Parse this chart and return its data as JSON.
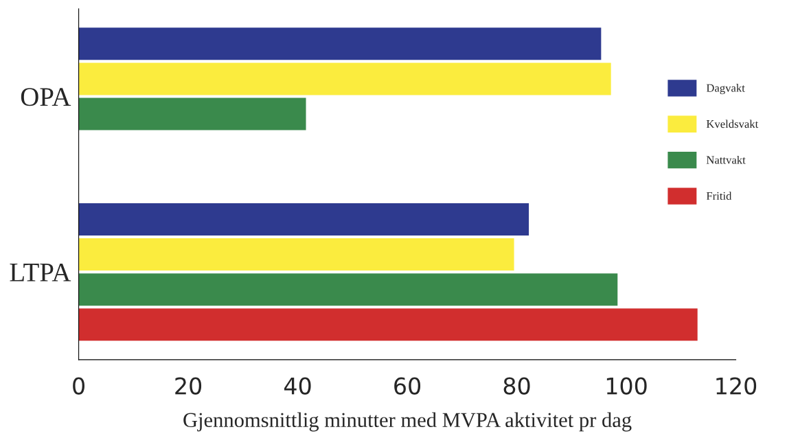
{
  "chart_data": {
    "type": "bar",
    "orientation": "horizontal",
    "xlabel": "Gjennomsnittlig minutter med MVPA aktivitet pr dag",
    "categories": [
      "OPA",
      "LTPA"
    ],
    "series": [
      {
        "name": "Dagvakt",
        "color": "#2e3a8f",
        "values": [
          95.4,
          82.2
        ]
      },
      {
        "name": "Kveldsvakt",
        "color": "#fbec3e",
        "values": [
          97.2,
          79.5
        ]
      },
      {
        "name": "Nattvakt",
        "color": "#3a8a4c",
        "values": [
          41.5,
          98.4
        ]
      },
      {
        "name": "Fritid",
        "color": "#d12e2e",
        "values": [
          null,
          113.0
        ]
      }
    ],
    "xlim": [
      0,
      120
    ],
    "xticks": [
      0,
      20,
      40,
      60,
      80,
      100,
      120
    ],
    "grid": false,
    "legend": "right"
  }
}
